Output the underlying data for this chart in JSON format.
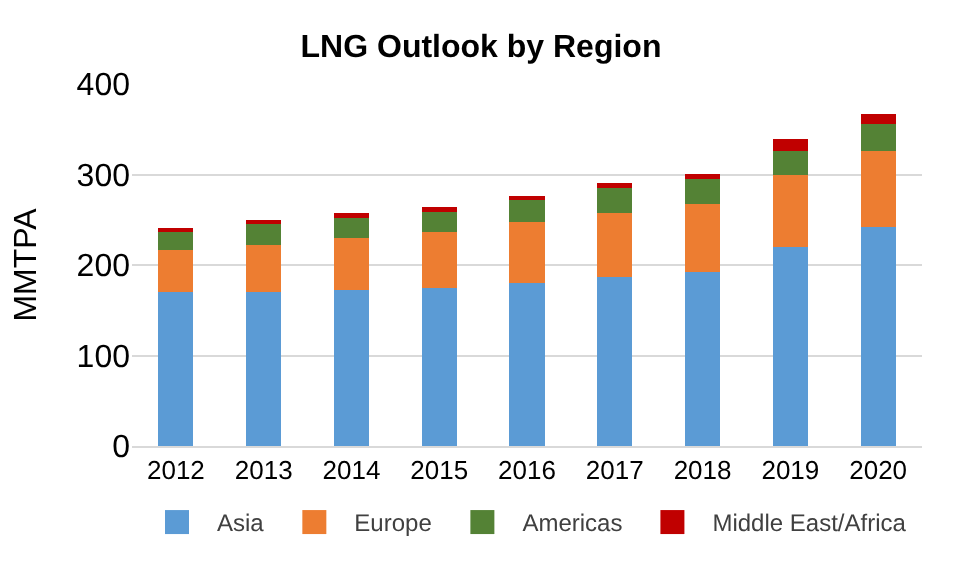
{
  "chart_data": {
    "type": "bar",
    "title": "LNG Outlook by Region",
    "ylabel": "MMTPA",
    "categories": [
      "2012",
      "2013",
      "2014",
      "2015",
      "2016",
      "2017",
      "2018",
      "2019",
      "2020"
    ],
    "stacked": true,
    "ylim": [
      0,
      400
    ],
    "yticks": [
      0,
      100,
      200,
      300,
      400
    ],
    "grid": "y",
    "legend": "bottom",
    "series": [
      {
        "name": "Asia",
        "color": "#5b9bd5",
        "values": [
          170,
          170,
          172,
          175,
          180,
          187,
          192,
          220,
          242
        ]
      },
      {
        "name": "Europe",
        "color": "#ed7d31",
        "values": [
          47,
          52,
          58,
          62,
          67,
          70,
          75,
          80,
          84
        ]
      },
      {
        "name": "Americas",
        "color": "#548235",
        "values": [
          21,
          23,
          22,
          22,
          25,
          28,
          28,
          26,
          30
        ]
      },
      {
        "name": "Middle East/Africa",
        "color": "#c00000",
        "values": [
          2,
          5,
          5,
          5,
          4,
          6,
          6,
          13,
          11
        ]
      }
    ]
  }
}
